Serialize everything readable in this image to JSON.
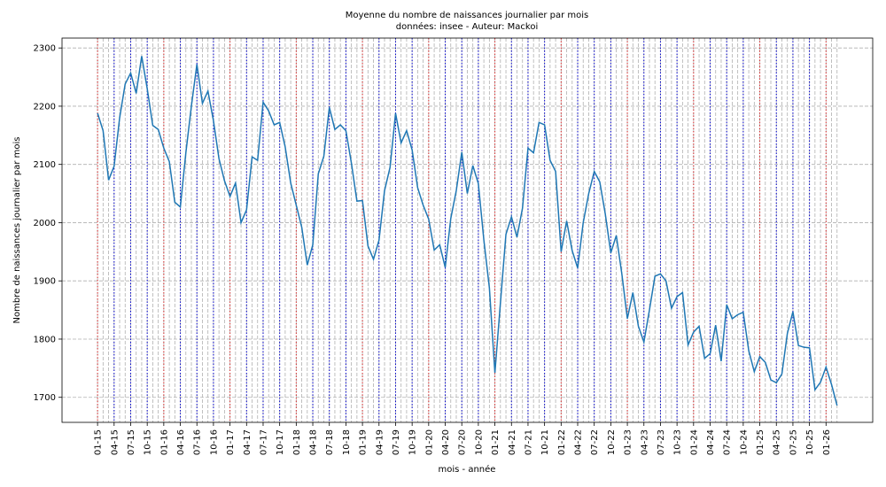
{
  "chart_data": {
    "type": "line",
    "title": "Moyenne du nombre de naissances journalier par mois",
    "subtitle": "données: insee - Auteur: Mackoi",
    "x_label": "mois - année",
    "y_label": "Nombre de naissances journalier par mois",
    "categories": [
      "01-15",
      null,
      null,
      "04-15",
      null,
      null,
      "07-15",
      null,
      null,
      "10-15",
      null,
      null,
      "01-16",
      null,
      null,
      "04-16",
      null,
      null,
      "07-16",
      null,
      null,
      "10-16",
      null,
      null,
      "01-17",
      null,
      null,
      "04-17",
      null,
      null,
      "07-17",
      null,
      null,
      "10-17",
      null,
      null,
      "01-18",
      null,
      null,
      "04-18",
      null,
      null,
      "07-18",
      null,
      null,
      "10-18",
      null,
      null,
      "01-19",
      null,
      null,
      "04-19",
      null,
      null,
      "07-19",
      null,
      null,
      "10-19",
      null,
      null,
      "01-20",
      null,
      null,
      "04-20",
      null,
      null,
      "07-20",
      null,
      null,
      "10-20",
      null,
      null,
      "01-21",
      null,
      null,
      "04-21",
      null,
      null,
      "07-21",
      null,
      null,
      "10-21",
      null,
      null,
      "01-22",
      null,
      null,
      "04-22",
      null,
      null,
      "07-22",
      null,
      null,
      "10-22",
      null,
      null,
      "01-23",
      null,
      null,
      "04-23",
      null,
      null,
      "07-23",
      null,
      null,
      "10-23",
      null,
      null,
      "01-24",
      null,
      null,
      "04-24",
      null,
      null,
      "07-24",
      null,
      null,
      "10-24",
      null,
      null,
      "01-25",
      null,
      null,
      "04-25",
      null,
      null,
      "07-25",
      null,
      null,
      "10-25",
      null,
      null,
      "01-26",
      null,
      null
    ],
    "values": [
      2188,
      2158,
      2073,
      2097,
      2180,
      2238,
      2257,
      2222,
      2286,
      2230,
      2167,
      2160,
      2128,
      2105,
      2035,
      2027,
      2120,
      2200,
      2272,
      2205,
      2226,
      2175,
      2110,
      2072,
      2045,
      2068,
      2000,
      2022,
      2113,
      2107,
      2207,
      2192,
      2168,
      2172,
      2130,
      2068,
      2030,
      1992,
      1927,
      1962,
      2084,
      2114,
      2198,
      2160,
      2168,
      2158,
      2102,
      2037,
      2038,
      1960,
      1937,
      1970,
      2055,
      2095,
      2188,
      2137,
      2158,
      2125,
      2060,
      2030,
      2006,
      1953,
      1962,
      1923,
      2007,
      2055,
      2121,
      2050,
      2098,
      2067,
      1970,
      1888,
      1742,
      1862,
      1980,
      2010,
      1975,
      2025,
      2128,
      2120,
      2172,
      2168,
      2107,
      2088,
      1950,
      2003,
      1952,
      1922,
      2000,
      2050,
      2088,
      2070,
      2015,
      1948,
      1978,
      1912,
      1835,
      1880,
      1822,
      1795,
      1850,
      1908,
      1912,
      1900,
      1853,
      1873,
      1880,
      1790,
      1812,
      1822,
      1767,
      1775,
      1824,
      1762,
      1859,
      1835,
      1842,
      1846,
      1780,
      1744,
      1770,
      1760,
      1730,
      1725,
      1740,
      1810,
      1847,
      1789,
      1786,
      1785,
      1713,
      1726,
      1752,
      1722,
      1686
    ],
    "color": "#1f77b4",
    "ylim": [
      1657,
      2317
    ],
    "yticks": [
      1700,
      1800,
      1900,
      2000,
      2100,
      2200,
      2300
    ],
    "grid": true
  }
}
